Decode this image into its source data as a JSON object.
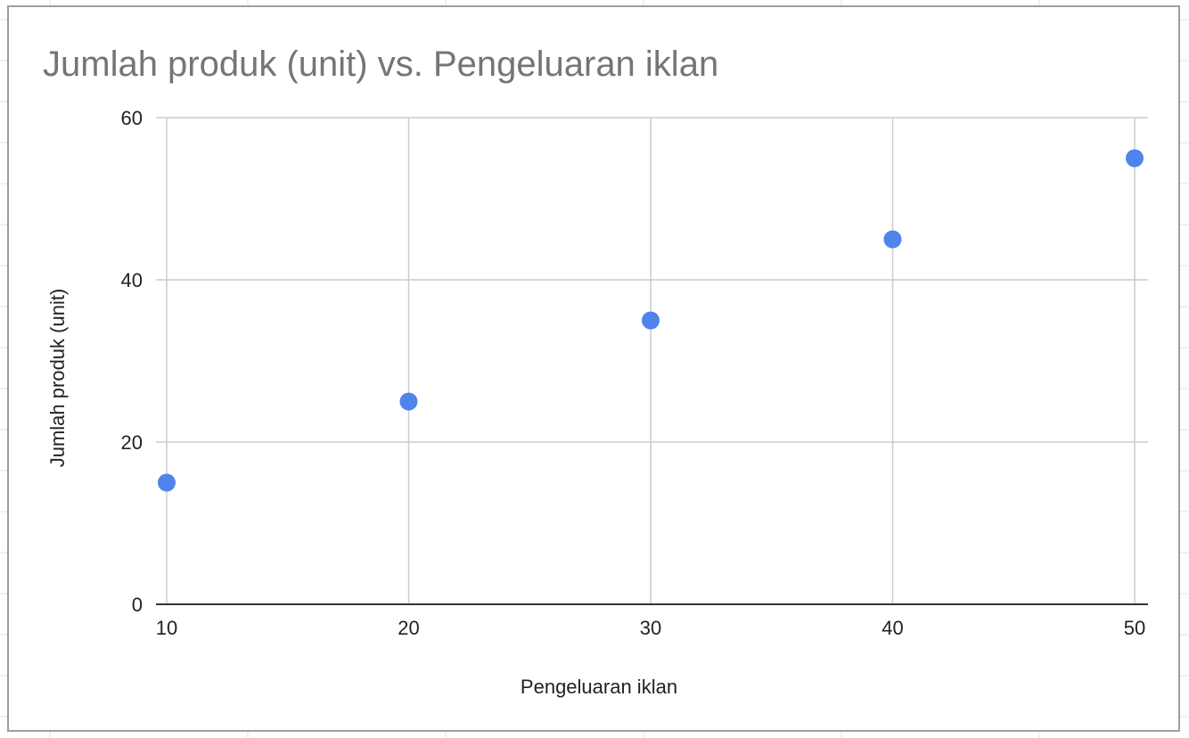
{
  "colors": {
    "point": "#4e84ec",
    "grid": "#cccccc",
    "baseline": "#333333",
    "title": "#757575",
    "sheet_grid": "#e2e2e2"
  },
  "chart_data": {
    "type": "scatter",
    "title": "Jumlah produk (unit) vs. Pengeluaran iklan",
    "xlabel": "Pengeluaran iklan",
    "ylabel": "Jumlah produk (unit)",
    "x": [
      10,
      20,
      30,
      40,
      50
    ],
    "y": [
      15,
      25,
      35,
      45,
      55
    ],
    "xlim": [
      10,
      50
    ],
    "ylim": [
      0,
      60
    ],
    "xticks": [
      10,
      20,
      30,
      40,
      50
    ],
    "yticks": [
      0,
      20,
      40,
      60
    ],
    "grid": true,
    "legend": "none"
  }
}
